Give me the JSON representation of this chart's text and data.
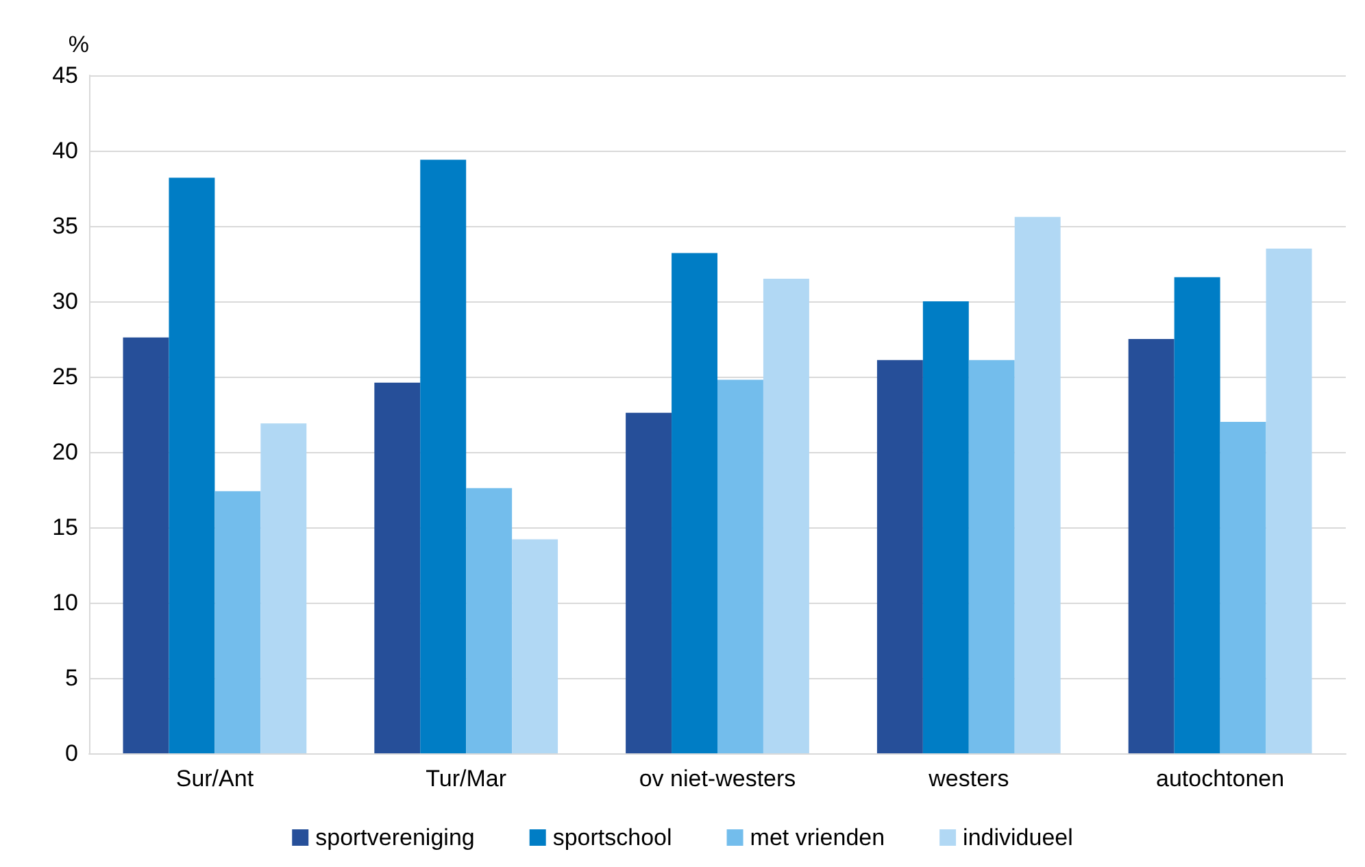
{
  "chart_data": {
    "type": "bar",
    "ylabel": "%",
    "categories": [
      "Sur/Ant",
      "Tur/Mar",
      "ov niet-westers",
      "westers",
      "autochtonen"
    ],
    "series": [
      {
        "name": "sportvereniging",
        "color": "#264f99",
        "values": [
          27.6,
          24.6,
          22.6,
          26.1,
          27.5
        ]
      },
      {
        "name": "sportschool",
        "color": "#007dc5",
        "values": [
          38.2,
          39.4,
          33.2,
          30.0,
          31.6
        ]
      },
      {
        "name": "met vrienden",
        "color": "#73bdec",
        "values": [
          17.4,
          17.6,
          24.8,
          26.1,
          22.0
        ]
      },
      {
        "name": "individueel",
        "color": "#b1d8f4",
        "values": [
          21.9,
          14.2,
          31.5,
          35.6,
          33.5
        ]
      }
    ],
    "ylim": [
      0,
      45
    ],
    "yticks": [
      0,
      5,
      10,
      15,
      20,
      25,
      30,
      35,
      40,
      45
    ],
    "grid": "y",
    "legend": "bottom"
  }
}
